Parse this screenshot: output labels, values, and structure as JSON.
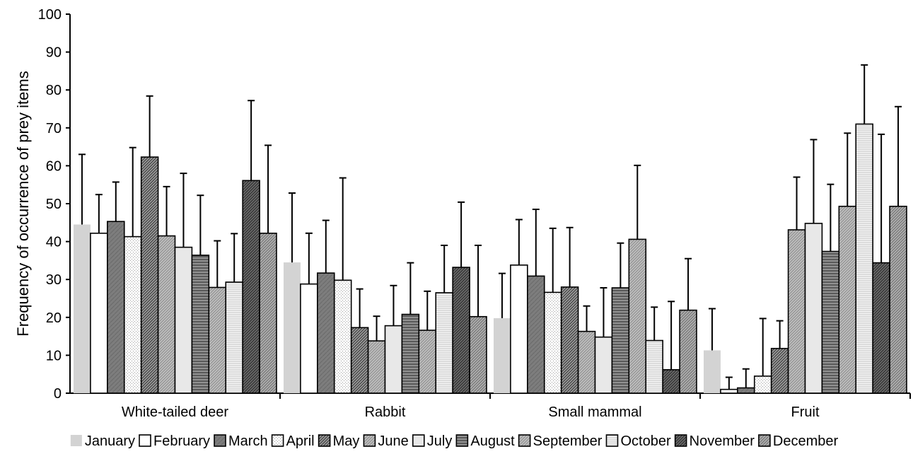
{
  "chart_data": {
    "type": "bar",
    "title": "",
    "xlabel": "",
    "ylabel": "Frequency of occurrence of prey items",
    "ylim": [
      0,
      100
    ],
    "yticks": [
      0,
      10,
      20,
      30,
      40,
      50,
      60,
      70,
      80,
      90,
      100
    ],
    "grid": false,
    "legend_position": "bottom",
    "error_bars": true,
    "categories": [
      "White-tailed deer",
      "Rabbit",
      "Small mammal",
      "Fruit"
    ],
    "series": [
      {
        "name": "January",
        "values": [
          44.5,
          34.5,
          19.8,
          11.3
        ],
        "errors": [
          18.5,
          18.3,
          11.8,
          11.0
        ],
        "color": "#d3d3d3",
        "pattern": "solid-light"
      },
      {
        "name": "February",
        "values": [
          42.2,
          28.8,
          33.8,
          1.0
        ],
        "errors": [
          10.2,
          13.4,
          12.0,
          3.2
        ],
        "color": "#ffffff",
        "pattern": "white"
      },
      {
        "name": "March",
        "values": [
          45.3,
          31.7,
          30.9,
          1.4
        ],
        "errors": [
          10.4,
          13.9,
          17.6,
          5.0
        ],
        "color": "#808080",
        "pattern": "dark-gray"
      },
      {
        "name": "April",
        "values": [
          41.3,
          29.8,
          26.6,
          4.5
        ],
        "errors": [
          23.5,
          27.0,
          16.9,
          15.2
        ],
        "color": "#ffffff",
        "pattern": "dotted"
      },
      {
        "name": "May",
        "values": [
          62.3,
          17.3,
          28.0,
          11.8
        ],
        "errors": [
          16.1,
          10.2,
          15.7,
          7.3
        ],
        "color": "#8a8a8a",
        "pattern": "diag-dense"
      },
      {
        "name": "June",
        "values": [
          41.5,
          13.8,
          16.3,
          43.1
        ],
        "errors": [
          13.0,
          6.5,
          6.7,
          13.9
        ],
        "color": "#aaaaaa",
        "pattern": "diag-light"
      },
      {
        "name": "July",
        "values": [
          38.5,
          17.8,
          14.8,
          44.8
        ],
        "errors": [
          19.5,
          10.6,
          13.0,
          22.1
        ],
        "color": "#e6e6e6",
        "pattern": "light"
      },
      {
        "name": "August",
        "values": [
          36.4,
          20.8,
          27.8,
          37.4
        ],
        "errors": [
          15.8,
          13.6,
          11.8,
          17.7
        ],
        "color": "#7a7a7a",
        "pattern": "horiz-dark"
      },
      {
        "name": "September",
        "values": [
          27.9,
          16.6,
          40.6,
          49.3
        ],
        "errors": [
          12.3,
          10.3,
          19.5,
          19.3
        ],
        "color": "#a6a6a6",
        "pattern": "diag-light"
      },
      {
        "name": "October",
        "values": [
          29.3,
          26.5,
          13.9,
          71.0
        ],
        "errors": [
          12.8,
          12.5,
          8.8,
          15.6
        ],
        "color": "#f0f0f0",
        "pattern": "horiz-light"
      },
      {
        "name": "November",
        "values": [
          56.1,
          33.2,
          6.2,
          34.4
        ],
        "errors": [
          21.1,
          17.2,
          18.0,
          33.9
        ],
        "color": "#7f7f7f",
        "pattern": "diag-dark"
      },
      {
        "name": "December",
        "values": [
          42.2,
          20.2,
          21.9,
          49.3
        ],
        "errors": [
          23.2,
          18.8,
          13.6,
          26.3
        ],
        "color": "#b4b4b4",
        "pattern": "diag-mid"
      }
    ]
  }
}
